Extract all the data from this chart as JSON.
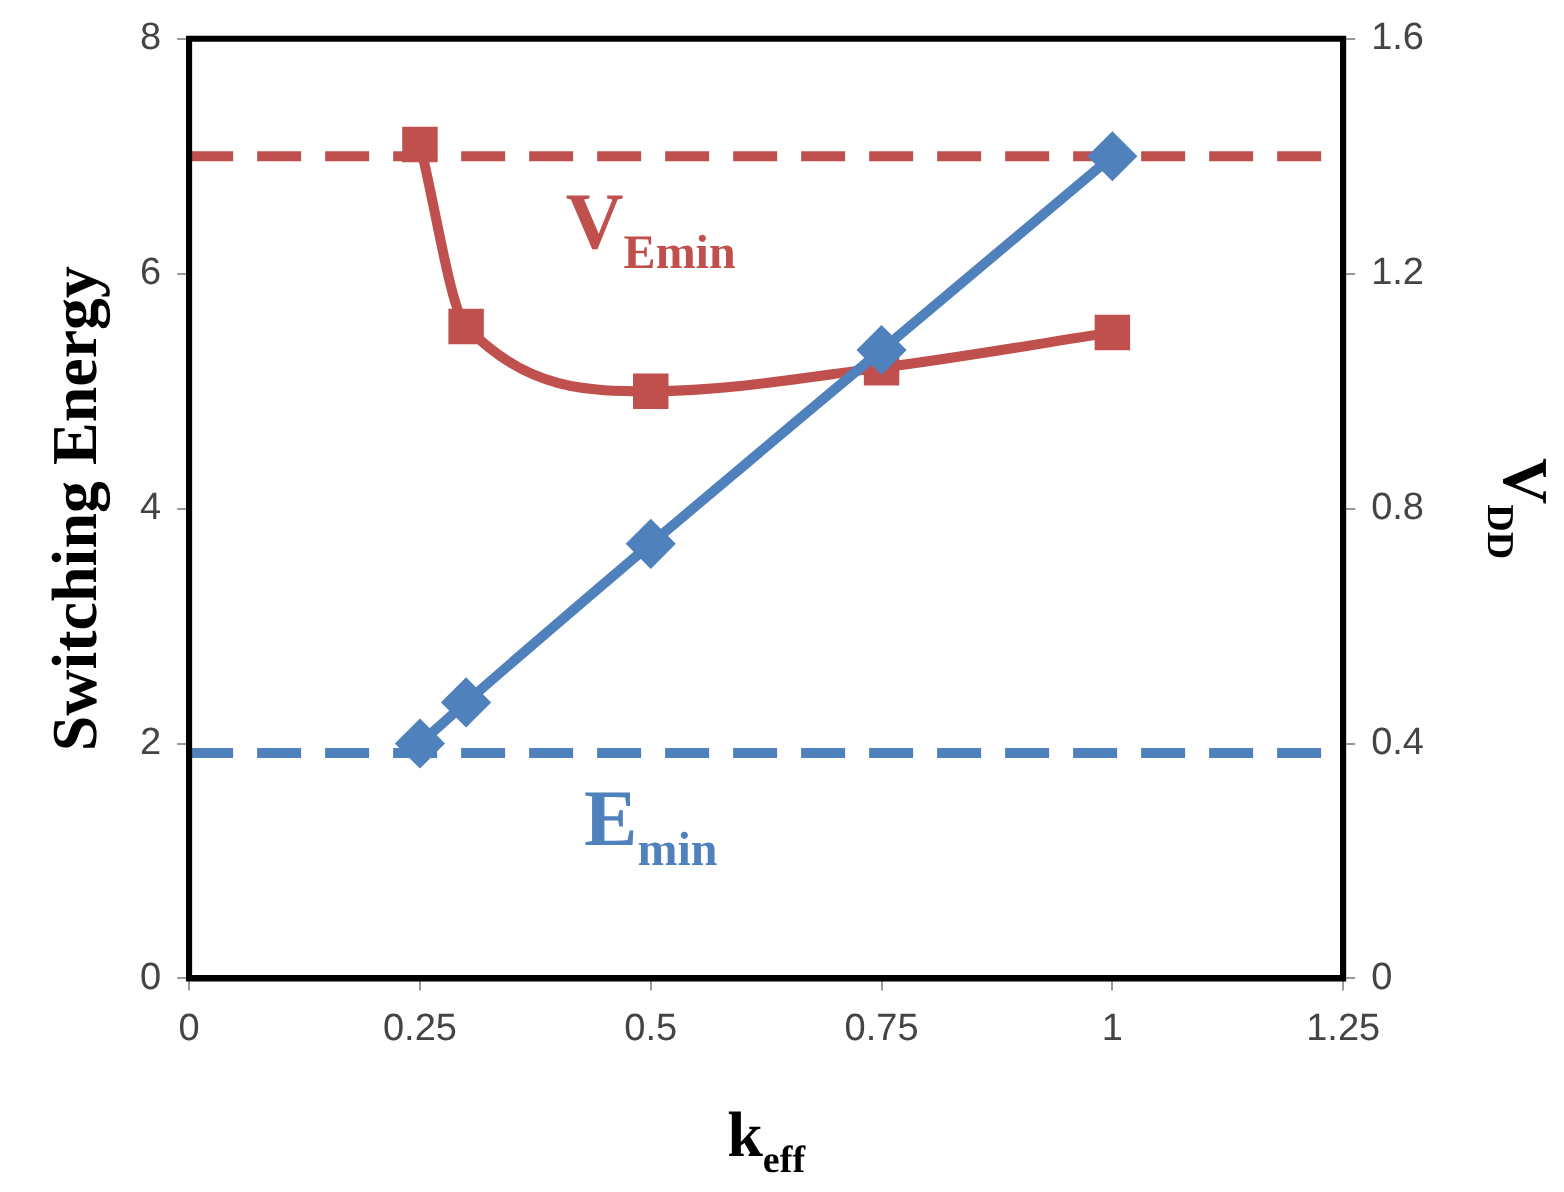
{
  "chart_data": {
    "type": "line",
    "xlabel": "k$_{eff}$",
    "ylabel": "Switching Energy",
    "y2label": "V$_{DD}$",
    "x": [
      0.25,
      0.3,
      0.5,
      0.75,
      1.0
    ],
    "series": [
      {
        "color": "#4f81bd",
        "marker": "diamond",
        "values": [
          2.0,
          2.35,
          3.7,
          5.35,
          7.0
        ]
      },
      {
        "color": "#c0504d",
        "marker": "square",
        "axis": "y2",
        "values": [
          1.42,
          1.11,
          1.0,
          1.04,
          1.1
        ]
      }
    ],
    "xlim": [
      0,
      1.25
    ],
    "xticks": [
      0,
      0.25,
      0.5,
      0.75,
      1,
      1.25
    ],
    "ylim": [
      0,
      8
    ],
    "yticks": [
      0,
      2,
      4,
      6,
      8
    ],
    "y2lim": [
      0,
      1.6
    ],
    "y2ticks": [
      0,
      0.4,
      0.8,
      1.2,
      1.6
    ],
    "ref_lines": [
      {
        "axis": "y2",
        "value": 1.4,
        "label": "V$_{Emin}$",
        "color": "#c0504d",
        "line_style": "dashed"
      },
      {
        "axis": "y",
        "value": 1.92,
        "label": "E$_{min}$",
        "color": "#4f81bd",
        "line_style": "dashed"
      }
    ],
    "grid": false,
    "legend": false,
    "line_style": "solid"
  }
}
